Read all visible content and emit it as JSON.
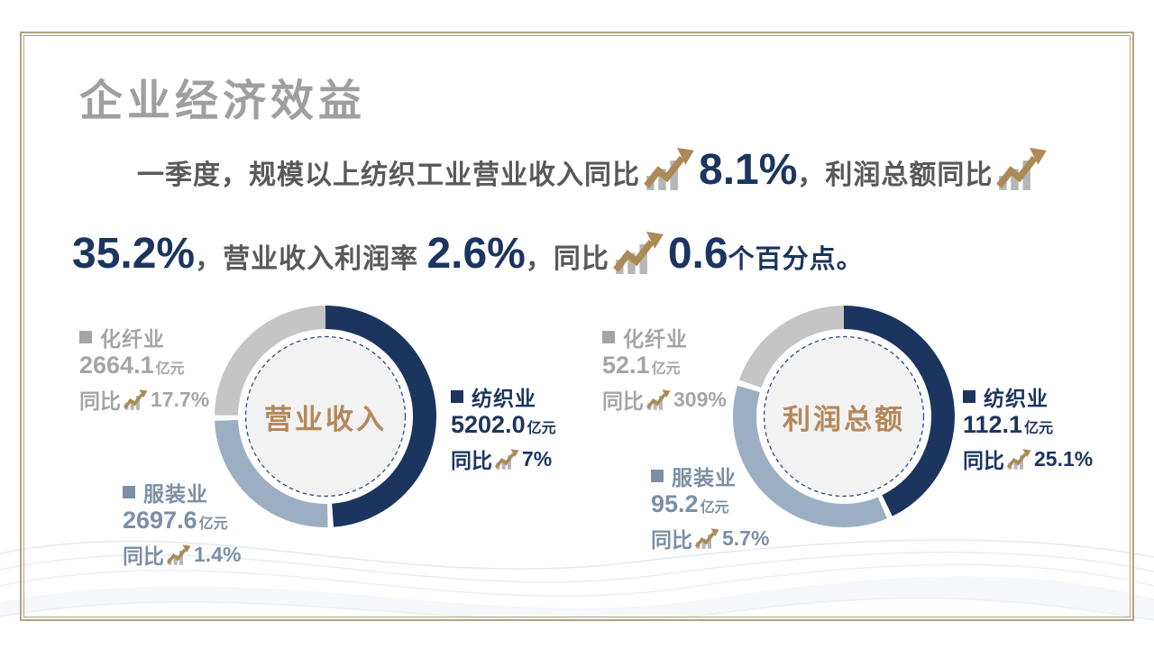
{
  "title": "企业经济效益",
  "summary": {
    "segments": [
      {
        "kind": "text",
        "text": "一季度，规模以上纺织工业营业收入同比"
      },
      {
        "kind": "icon"
      },
      {
        "kind": "big",
        "text": "8.1%"
      },
      {
        "kind": "text",
        "text": "，利润总额同比"
      },
      {
        "kind": "icon"
      },
      {
        "kind": "br"
      },
      {
        "kind": "big",
        "text": "35.2%"
      },
      {
        "kind": "text",
        "text": "，营业收入利润率 "
      },
      {
        "kind": "big",
        "text": "2.6%"
      },
      {
        "kind": "text",
        "text": "，同比"
      },
      {
        "kind": "icon"
      },
      {
        "kind": "big",
        "text": "0.6"
      },
      {
        "kind": "suffix",
        "text": "个百分点。"
      }
    ]
  },
  "colors": {
    "navy": "#1b355f",
    "steel_text": "#7b90a6",
    "steel_segment": "#9cafc2",
    "gray_text": "#a5a5a5",
    "gray_segment": "#c5c5c5",
    "gold_arrow": "#ab8a57",
    "icon_bar_gray": "#b6b6b6",
    "center_tan": "#b5885a",
    "title_gray": "#9f9f9f",
    "body_gray": "#595959",
    "frame_gold": "#b2a384",
    "inner_circle_fill": "#f2f2f3",
    "dashed_ring": "#2a4a7c"
  },
  "chart_data": [
    {
      "type": "pie",
      "variant": "donut",
      "title": "营业收入",
      "unit": "亿元",
      "yoy_label": "同比",
      "categories": [
        "纺织业",
        "服装业",
        "化纤业"
      ],
      "values": [
        5202.0,
        2697.6,
        2664.1
      ],
      "value_labels": [
        "5202.0",
        "2697.6",
        "2664.1"
      ],
      "yoy": [
        "7%",
        "1.4%",
        "17.7%"
      ],
      "segment_colors": [
        "#1b355f",
        "#9cafc2",
        "#c5c5c5"
      ],
      "label_colors": [
        "#1b355f",
        "#7b90a6",
        "#a5a5a5"
      ],
      "legend_position": "around",
      "start_angle_deg": 0,
      "direction": "clockwise"
    },
    {
      "type": "pie",
      "variant": "donut",
      "title": "利润总额",
      "unit": "亿元",
      "yoy_label": "同比",
      "categories": [
        "纺织业",
        "服装业",
        "化纤业"
      ],
      "values": [
        112.1,
        95.2,
        52.1
      ],
      "value_labels": [
        "112.1",
        "95.2",
        "52.1"
      ],
      "yoy": [
        "25.1%",
        "5.7%",
        "309%"
      ],
      "segment_colors": [
        "#1b355f",
        "#9cafc2",
        "#c5c5c5"
      ],
      "label_colors": [
        "#1b355f",
        "#7b90a6",
        "#a5a5a5"
      ],
      "legend_position": "around",
      "start_angle_deg": 0,
      "direction": "clockwise"
    }
  ]
}
